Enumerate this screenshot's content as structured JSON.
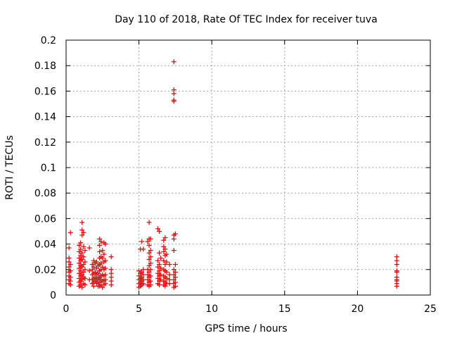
{
  "chart_data": {
    "type": "scatter",
    "title": "Day 110 of 2018, Rate Of TEC Index for receiver tuva",
    "xlabel": "GPS time / hours",
    "ylabel": "ROTI / TECUs",
    "xlim": [
      0,
      25
    ],
    "ylim": [
      0,
      0.2
    ],
    "x_ticks": [
      0,
      5,
      10,
      15,
      20,
      25
    ],
    "x_tick_labels": [
      "0",
      "5",
      "10",
      "15",
      "20",
      "25"
    ],
    "y_ticks": [
      0,
      0.02,
      0.04,
      0.06,
      0.08,
      0.1,
      0.12,
      0.14,
      0.16,
      0.18,
      0.2
    ],
    "y_tick_labels": [
      "0",
      "0.02",
      "0.04",
      "0.06",
      "0.08",
      "0.1",
      "0.12",
      "0.14",
      "0.16",
      "0.18",
      "0.2"
    ],
    "grid": true,
    "marker": "plus",
    "color": "#e00000",
    "series": [
      {
        "points": [
          [
            0.2,
            0.037
          ],
          [
            0.2,
            0.029
          ],
          [
            0.2,
            0.026
          ],
          [
            0.2,
            0.022
          ],
          [
            0.2,
            0.018
          ],
          [
            0.2,
            0.015
          ],
          [
            0.2,
            0.012
          ],
          [
            0.2,
            0.009
          ],
          [
            0.3,
            0.049
          ],
          [
            0.3,
            0.024
          ],
          [
            0.3,
            0.019
          ],
          [
            0.3,
            0.014
          ],
          [
            0.3,
            0.011
          ],
          [
            0.3,
            0.008
          ],
          [
            0.9,
            0.039
          ],
          [
            0.9,
            0.034
          ],
          [
            0.9,
            0.029
          ],
          [
            0.9,
            0.025
          ],
          [
            0.9,
            0.021
          ],
          [
            0.9,
            0.017
          ],
          [
            0.9,
            0.013
          ],
          [
            0.9,
            0.01
          ],
          [
            0.9,
            0.007
          ],
          [
            1.0,
            0.041
          ],
          [
            1.0,
            0.036
          ],
          [
            1.0,
            0.031
          ],
          [
            1.0,
            0.027
          ],
          [
            1.0,
            0.023
          ],
          [
            1.0,
            0.019
          ],
          [
            1.0,
            0.015
          ],
          [
            1.0,
            0.011
          ],
          [
            1.0,
            0.008
          ],
          [
            1.1,
            0.057
          ],
          [
            1.1,
            0.051
          ],
          [
            1.1,
            0.047
          ],
          [
            1.1,
            0.033
          ],
          [
            1.1,
            0.028
          ],
          [
            1.1,
            0.022
          ],
          [
            1.1,
            0.016
          ],
          [
            1.1,
            0.012
          ],
          [
            1.1,
            0.006
          ],
          [
            1.2,
            0.049
          ],
          [
            1.2,
            0.038
          ],
          [
            1.2,
            0.03
          ],
          [
            1.2,
            0.024
          ],
          [
            1.2,
            0.018
          ],
          [
            1.2,
            0.014
          ],
          [
            1.2,
            0.009
          ],
          [
            1.3,
            0.035
          ],
          [
            1.3,
            0.026
          ],
          [
            1.3,
            0.02
          ],
          [
            1.3,
            0.013
          ],
          [
            1.3,
            0.008
          ],
          [
            1.6,
            0.037
          ],
          [
            1.6,
            0.019
          ],
          [
            1.6,
            0.012
          ],
          [
            1.8,
            0.024
          ],
          [
            1.8,
            0.02
          ],
          [
            1.8,
            0.016
          ],
          [
            1.8,
            0.012
          ],
          [
            1.8,
            0.009
          ],
          [
            1.9,
            0.027
          ],
          [
            1.9,
            0.022
          ],
          [
            1.9,
            0.017
          ],
          [
            1.9,
            0.013
          ],
          [
            1.9,
            0.01
          ],
          [
            1.9,
            0.007
          ],
          [
            2.0,
            0.025
          ],
          [
            2.0,
            0.018
          ],
          [
            2.0,
            0.014
          ],
          [
            2.0,
            0.011
          ],
          [
            2.1,
            0.026
          ],
          [
            2.1,
            0.021
          ],
          [
            2.1,
            0.016
          ],
          [
            2.1,
            0.012
          ],
          [
            2.1,
            0.009
          ],
          [
            2.2,
            0.023
          ],
          [
            2.2,
            0.017
          ],
          [
            2.2,
            0.013
          ],
          [
            2.2,
            0.01
          ],
          [
            2.2,
            0.007
          ],
          [
            2.3,
            0.044
          ],
          [
            2.3,
            0.039
          ],
          [
            2.3,
            0.034
          ],
          [
            2.3,
            0.029
          ],
          [
            2.3,
            0.024
          ],
          [
            2.3,
            0.019
          ],
          [
            2.3,
            0.014
          ],
          [
            2.3,
            0.01
          ],
          [
            2.3,
            0.007
          ],
          [
            2.4,
            0.042
          ],
          [
            2.4,
            0.03
          ],
          [
            2.4,
            0.025
          ],
          [
            2.4,
            0.02
          ],
          [
            2.4,
            0.015
          ],
          [
            2.4,
            0.012
          ],
          [
            2.4,
            0.008
          ],
          [
            2.5,
            0.035
          ],
          [
            2.5,
            0.029
          ],
          [
            2.5,
            0.022
          ],
          [
            2.5,
            0.016
          ],
          [
            2.5,
            0.011
          ],
          [
            2.5,
            0.006
          ],
          [
            2.6,
            0.041
          ],
          [
            2.6,
            0.032
          ],
          [
            2.6,
            0.026
          ],
          [
            2.6,
            0.02
          ],
          [
            2.6,
            0.015
          ],
          [
            2.6,
            0.011
          ],
          [
            2.6,
            0.008
          ],
          [
            2.7,
            0.04
          ],
          [
            2.7,
            0.027
          ],
          [
            2.7,
            0.021
          ],
          [
            2.7,
            0.016
          ],
          [
            2.7,
            0.012
          ],
          [
            2.7,
            0.009
          ],
          [
            3.1,
            0.03
          ],
          [
            3.1,
            0.02
          ],
          [
            3.1,
            0.017
          ],
          [
            3.1,
            0.014
          ],
          [
            3.1,
            0.011
          ],
          [
            3.1,
            0.008
          ],
          [
            5.0,
            0.019
          ],
          [
            5.0,
            0.015
          ],
          [
            5.0,
            0.012
          ],
          [
            5.0,
            0.009
          ],
          [
            5.0,
            0.006
          ],
          [
            5.1,
            0.036
          ],
          [
            5.1,
            0.017
          ],
          [
            5.1,
            0.013
          ],
          [
            5.1,
            0.01
          ],
          [
            5.1,
            0.007
          ],
          [
            5.2,
            0.042
          ],
          [
            5.2,
            0.018
          ],
          [
            5.2,
            0.014
          ],
          [
            5.2,
            0.011
          ],
          [
            5.2,
            0.008
          ],
          [
            5.3,
            0.036
          ],
          [
            5.3,
            0.02
          ],
          [
            5.3,
            0.016
          ],
          [
            5.3,
            0.012
          ],
          [
            5.3,
            0.009
          ],
          [
            5.6,
            0.042
          ],
          [
            5.6,
            0.02
          ],
          [
            5.6,
            0.016
          ],
          [
            5.6,
            0.012
          ],
          [
            5.6,
            0.008
          ],
          [
            5.7,
            0.057
          ],
          [
            5.7,
            0.044
          ],
          [
            5.7,
            0.039
          ],
          [
            5.7,
            0.033
          ],
          [
            5.7,
            0.028
          ],
          [
            5.7,
            0.023
          ],
          [
            5.7,
            0.018
          ],
          [
            5.7,
            0.014
          ],
          [
            5.7,
            0.01
          ],
          [
            5.7,
            0.007
          ],
          [
            5.8,
            0.044
          ],
          [
            5.8,
            0.035
          ],
          [
            5.8,
            0.03
          ],
          [
            5.8,
            0.025
          ],
          [
            5.8,
            0.02
          ],
          [
            5.8,
            0.015
          ],
          [
            5.8,
            0.011
          ],
          [
            5.8,
            0.008
          ],
          [
            6.3,
            0.052
          ],
          [
            6.3,
            0.027
          ],
          [
            6.3,
            0.022
          ],
          [
            6.3,
            0.017
          ],
          [
            6.3,
            0.013
          ],
          [
            6.3,
            0.009
          ],
          [
            6.4,
            0.05
          ],
          [
            6.4,
            0.033
          ],
          [
            6.4,
            0.024
          ],
          [
            6.4,
            0.019
          ],
          [
            6.4,
            0.015
          ],
          [
            6.4,
            0.011
          ],
          [
            6.4,
            0.008
          ],
          [
            6.5,
            0.029
          ],
          [
            6.5,
            0.021
          ],
          [
            6.5,
            0.016
          ],
          [
            6.5,
            0.012
          ],
          [
            6.7,
            0.043
          ],
          [
            6.7,
            0.038
          ],
          [
            6.7,
            0.034
          ],
          [
            6.7,
            0.027
          ],
          [
            6.7,
            0.02
          ],
          [
            6.7,
            0.015
          ],
          [
            6.7,
            0.011
          ],
          [
            6.7,
            0.008
          ],
          [
            6.8,
            0.045
          ],
          [
            6.8,
            0.036
          ],
          [
            6.8,
            0.031
          ],
          [
            6.8,
            0.024
          ],
          [
            6.8,
            0.019
          ],
          [
            6.8,
            0.014
          ],
          [
            6.8,
            0.01
          ],
          [
            6.8,
            0.007
          ],
          [
            6.9,
            0.032
          ],
          [
            6.9,
            0.026
          ],
          [
            6.9,
            0.018
          ],
          [
            6.9,
            0.013
          ],
          [
            6.9,
            0.009
          ],
          [
            7.1,
            0.024
          ],
          [
            7.1,
            0.016
          ],
          [
            7.1,
            0.012
          ],
          [
            7.1,
            0.009
          ],
          [
            7.4,
            0.183
          ],
          [
            7.4,
            0.161
          ],
          [
            7.4,
            0.158
          ],
          [
            7.4,
            0.153
          ],
          [
            7.4,
            0.152
          ],
          [
            7.4,
            0.047
          ],
          [
            7.4,
            0.044
          ],
          [
            7.4,
            0.035
          ],
          [
            7.4,
            0.02
          ],
          [
            7.4,
            0.016
          ],
          [
            7.4,
            0.012
          ],
          [
            7.4,
            0.009
          ],
          [
            7.4,
            0.006
          ],
          [
            7.5,
            0.048
          ],
          [
            7.5,
            0.024
          ],
          [
            7.5,
            0.018
          ],
          [
            7.5,
            0.014
          ],
          [
            7.5,
            0.01
          ],
          [
            7.5,
            0.007
          ],
          [
            22.7,
            0.03
          ],
          [
            22.7,
            0.027
          ],
          [
            22.7,
            0.024
          ],
          [
            22.7,
            0.019
          ],
          [
            22.7,
            0.018
          ],
          [
            22.7,
            0.014
          ],
          [
            22.7,
            0.012
          ],
          [
            22.7,
            0.011
          ],
          [
            22.7,
            0.009
          ],
          [
            22.7,
            0.007
          ]
        ]
      }
    ]
  }
}
